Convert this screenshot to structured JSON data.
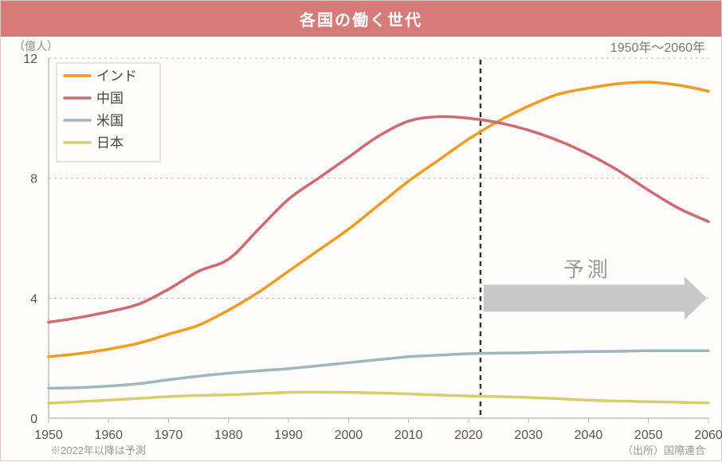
{
  "title": "各国の働く世代",
  "subtitle": "1950年～2060年",
  "ylabel": "（億人）",
  "footnote_left": "※2022年以降は予測",
  "footnote_right": "（出所）国際連合",
  "forecast_label": "予測",
  "chart": {
    "type": "line",
    "background_color": "#fefdfb",
    "plot_border_color": "#bbbbbb",
    "grid_color": "#bbbbbb",
    "grid_dash": "3,4",
    "x": {
      "min": 1950,
      "max": 2060,
      "ticks": [
        1950,
        1960,
        1970,
        1980,
        1990,
        2000,
        2010,
        2020,
        2030,
        2040,
        2050,
        2060
      ]
    },
    "y": {
      "min": 0,
      "max": 12,
      "ticks": [
        0,
        4,
        8,
        12
      ]
    },
    "forecast_line_x": 2022,
    "forecast_line_color": "#333333",
    "forecast_line_dash": "6,5",
    "forecast_arrow_color": "#c8c8c8",
    "line_width": 3.5,
    "series": [
      {
        "name": "インド",
        "color": "#f39a1f",
        "points": [
          [
            1950,
            2.05
          ],
          [
            1955,
            2.15
          ],
          [
            1960,
            2.3
          ],
          [
            1965,
            2.5
          ],
          [
            1970,
            2.8
          ],
          [
            1975,
            3.1
          ],
          [
            1980,
            3.6
          ],
          [
            1985,
            4.2
          ],
          [
            1990,
            4.9
          ],
          [
            1995,
            5.6
          ],
          [
            2000,
            6.3
          ],
          [
            2005,
            7.1
          ],
          [
            2010,
            7.9
          ],
          [
            2015,
            8.6
          ],
          [
            2020,
            9.3
          ],
          [
            2025,
            9.9
          ],
          [
            2030,
            10.4
          ],
          [
            2035,
            10.8
          ],
          [
            2040,
            11.0
          ],
          [
            2045,
            11.15
          ],
          [
            2050,
            11.2
          ],
          [
            2055,
            11.1
          ],
          [
            2060,
            10.9
          ]
        ]
      },
      {
        "name": "中国",
        "color": "#d06a6e",
        "points": [
          [
            1950,
            3.2
          ],
          [
            1955,
            3.35
          ],
          [
            1960,
            3.55
          ],
          [
            1965,
            3.8
          ],
          [
            1970,
            4.3
          ],
          [
            1975,
            4.9
          ],
          [
            1980,
            5.3
          ],
          [
            1985,
            6.3
          ],
          [
            1990,
            7.3
          ],
          [
            1995,
            8.0
          ],
          [
            2000,
            8.7
          ],
          [
            2005,
            9.4
          ],
          [
            2010,
            9.9
          ],
          [
            2015,
            10.05
          ],
          [
            2020,
            10.0
          ],
          [
            2025,
            9.85
          ],
          [
            2030,
            9.6
          ],
          [
            2035,
            9.25
          ],
          [
            2040,
            8.8
          ],
          [
            2045,
            8.25
          ],
          [
            2050,
            7.6
          ],
          [
            2055,
            7.0
          ],
          [
            2060,
            6.55
          ]
        ]
      },
      {
        "name": "米国",
        "color": "#9db8bc",
        "points": [
          [
            1950,
            1.0
          ],
          [
            1955,
            1.02
          ],
          [
            1960,
            1.07
          ],
          [
            1965,
            1.15
          ],
          [
            1970,
            1.28
          ],
          [
            1975,
            1.4
          ],
          [
            1980,
            1.5
          ],
          [
            1985,
            1.58
          ],
          [
            1990,
            1.65
          ],
          [
            1995,
            1.75
          ],
          [
            2000,
            1.85
          ],
          [
            2005,
            1.95
          ],
          [
            2010,
            2.05
          ],
          [
            2015,
            2.1
          ],
          [
            2020,
            2.15
          ],
          [
            2025,
            2.17
          ],
          [
            2030,
            2.18
          ],
          [
            2035,
            2.2
          ],
          [
            2040,
            2.22
          ],
          [
            2045,
            2.23
          ],
          [
            2050,
            2.25
          ],
          [
            2055,
            2.25
          ],
          [
            2060,
            2.25
          ]
        ]
      },
      {
        "name": "日本",
        "color": "#d7cf6b",
        "points": [
          [
            1950,
            0.5
          ],
          [
            1955,
            0.55
          ],
          [
            1960,
            0.6
          ],
          [
            1965,
            0.66
          ],
          [
            1970,
            0.72
          ],
          [
            1975,
            0.76
          ],
          [
            1980,
            0.78
          ],
          [
            1985,
            0.82
          ],
          [
            1990,
            0.86
          ],
          [
            1995,
            0.87
          ],
          [
            2000,
            0.86
          ],
          [
            2005,
            0.84
          ],
          [
            2010,
            0.81
          ],
          [
            2015,
            0.77
          ],
          [
            2020,
            0.74
          ],
          [
            2025,
            0.72
          ],
          [
            2030,
            0.69
          ],
          [
            2035,
            0.65
          ],
          [
            2040,
            0.6
          ],
          [
            2045,
            0.57
          ],
          [
            2050,
            0.55
          ],
          [
            2055,
            0.53
          ],
          [
            2060,
            0.51
          ]
        ]
      }
    ]
  }
}
